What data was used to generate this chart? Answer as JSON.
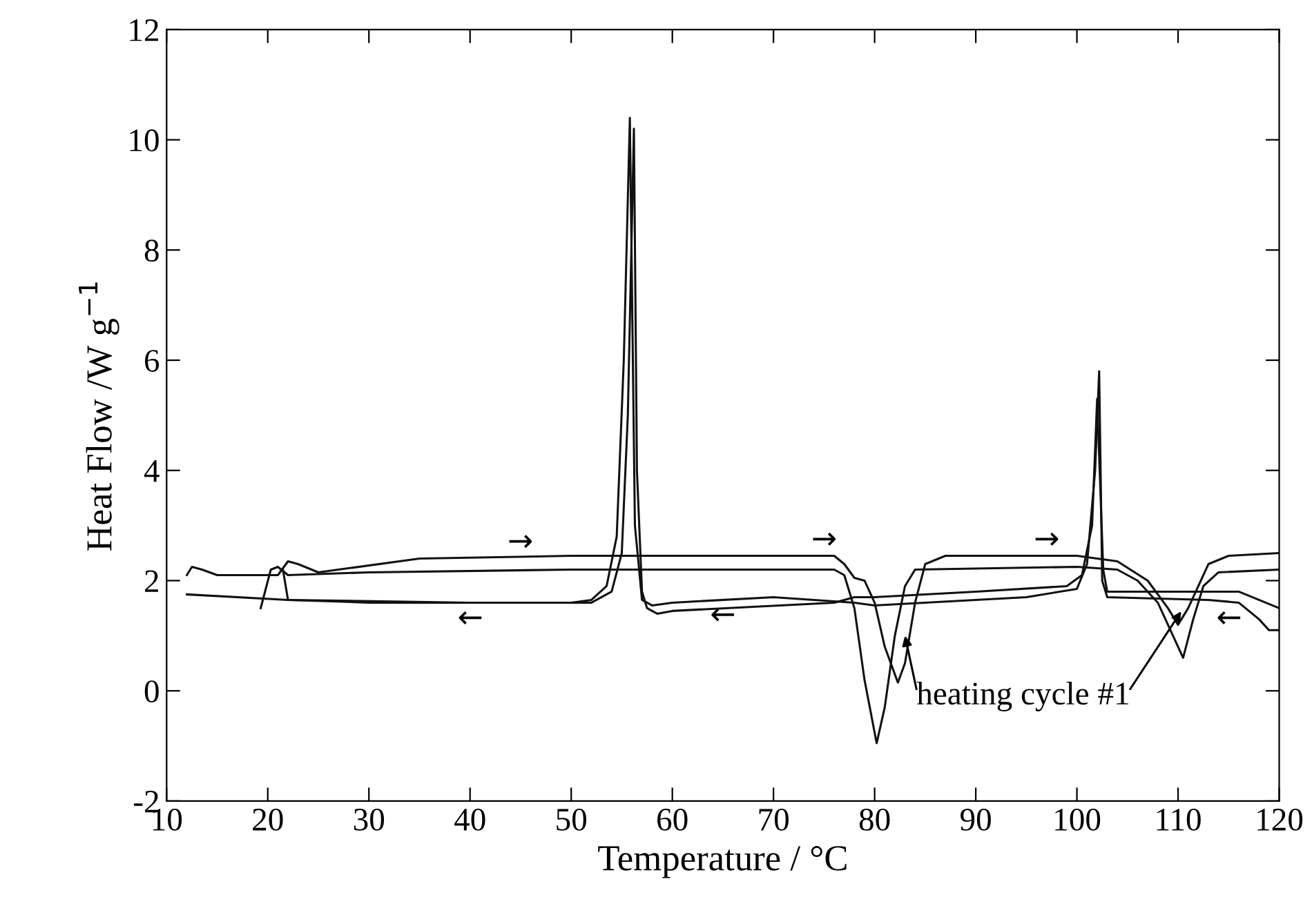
{
  "chart_data": {
    "type": "line",
    "xlabel": "Temperature / °C",
    "ylabel": "Heat Flow /W g$^{−1}$",
    "xlim": [
      10,
      120
    ],
    "xticks": [
      10,
      20,
      30,
      40,
      50,
      60,
      70,
      80,
      90,
      100,
      110,
      120
    ],
    "ylim": [
      -2,
      12
    ],
    "yticks": [
      -2,
      0,
      2,
      4,
      6,
      8,
      10,
      12
    ],
    "grid": false,
    "legend": false,
    "marker": "none",
    "line_style": "solid",
    "series": [
      {
        "color": "#111111",
        "x": [
          12,
          12.5,
          13.5,
          15,
          21,
          22,
          23,
          25,
          35,
          50,
          76,
          77,
          78,
          79,
          80,
          81,
          82.3,
          83,
          84,
          85,
          87,
          100,
          104,
          107,
          109,
          110,
          111,
          113,
          115,
          120
        ],
        "values": [
          2.1,
          2.25,
          2.2,
          2.1,
          2.1,
          2.35,
          2.3,
          2.15,
          2.4,
          2.45,
          2.45,
          2.3,
          2.05,
          2.0,
          1.6,
          0.8,
          0.15,
          0.5,
          1.6,
          2.3,
          2.45,
          2.45,
          2.35,
          2.0,
          1.5,
          1.2,
          1.5,
          2.3,
          2.45,
          2.5
        ]
      },
      {
        "color": "#111111",
        "x": [
          19.3,
          20.3,
          21,
          22,
          30,
          50,
          76,
          77,
          78,
          79,
          80.2,
          81,
          82,
          83,
          84,
          100,
          104,
          106,
          108,
          109.5,
          110.5,
          111.5,
          112.5,
          114,
          120
        ],
        "values": [
          1.5,
          2.2,
          2.25,
          2.1,
          2.15,
          2.2,
          2.2,
          2.1,
          1.5,
          0.2,
          -0.95,
          -0.3,
          1.0,
          1.9,
          2.2,
          2.25,
          2.2,
          2.0,
          1.6,
          1.0,
          0.6,
          1.3,
          1.9,
          2.15,
          2.2
        ]
      },
      {
        "color": "#111111",
        "x": [
          120,
          119,
          118,
          116,
          113,
          103,
          102.5,
          102.2,
          101.8,
          101,
          100,
          95,
          80,
          78,
          70,
          60,
          58,
          57,
          56.3,
          55.8,
          55.2,
          54.5,
          53.5,
          52,
          50,
          45,
          30,
          22,
          12
        ],
        "values": [
          1.1,
          1.1,
          1.3,
          1.6,
          1.65,
          1.7,
          2.0,
          5.8,
          4.0,
          2.3,
          1.85,
          1.7,
          1.55,
          1.6,
          1.7,
          1.6,
          1.55,
          1.65,
          3.0,
          10.4,
          6.0,
          2.8,
          1.9,
          1.65,
          1.6,
          1.6,
          1.6,
          1.65,
          1.75
        ]
      },
      {
        "color": "#111111",
        "x": [
          120,
          116,
          103,
          102.6,
          102,
          101.5,
          100.5,
          99,
          90,
          80,
          78,
          76,
          60,
          58.5,
          57.5,
          57,
          56.5,
          56.2,
          55.6,
          55,
          54,
          52,
          40,
          22,
          21.5
        ],
        "values": [
          1.5,
          1.8,
          1.8,
          2.2,
          5.3,
          3.0,
          2.1,
          1.9,
          1.8,
          1.7,
          1.7,
          1.6,
          1.45,
          1.4,
          1.5,
          1.8,
          4.0,
          10.2,
          5.0,
          2.5,
          1.8,
          1.6,
          1.6,
          1.65,
          2.2
        ]
      }
    ],
    "annotations": [
      {
        "text": "heating cycle #1",
        "x": 83,
        "y": 1.0
      },
      "→",
      "←",
      "→",
      "←",
      "→",
      "←"
    ]
  }
}
